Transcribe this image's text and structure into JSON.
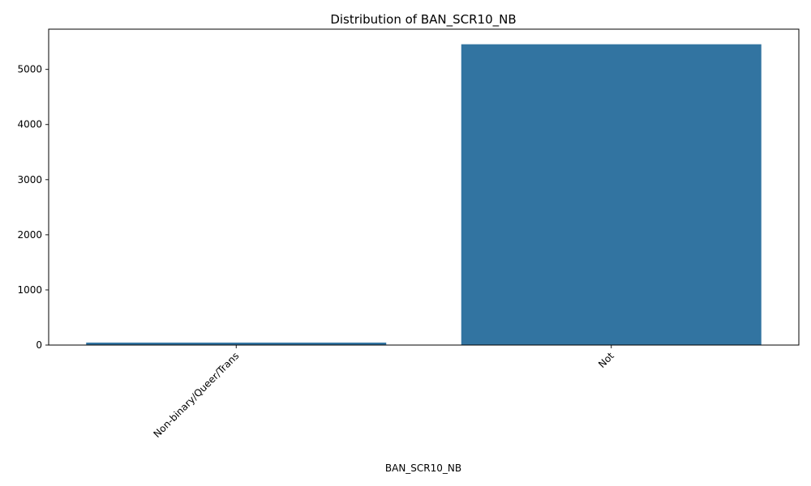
{
  "chart_data": {
    "type": "bar",
    "title": "Distribution of BAN_SCR10_NB",
    "xlabel": "BAN_SCR10_NB",
    "ylabel": "",
    "categories": [
      "Non-binary/Queer/Trans",
      "Not"
    ],
    "values": [
      45,
      5456
    ],
    "ylim": [
      0,
      5730
    ],
    "yticks": [
      0,
      1000,
      2000,
      3000,
      4000,
      5000
    ],
    "bar_color": "#3274a1",
    "grid": false,
    "legend": "none"
  }
}
